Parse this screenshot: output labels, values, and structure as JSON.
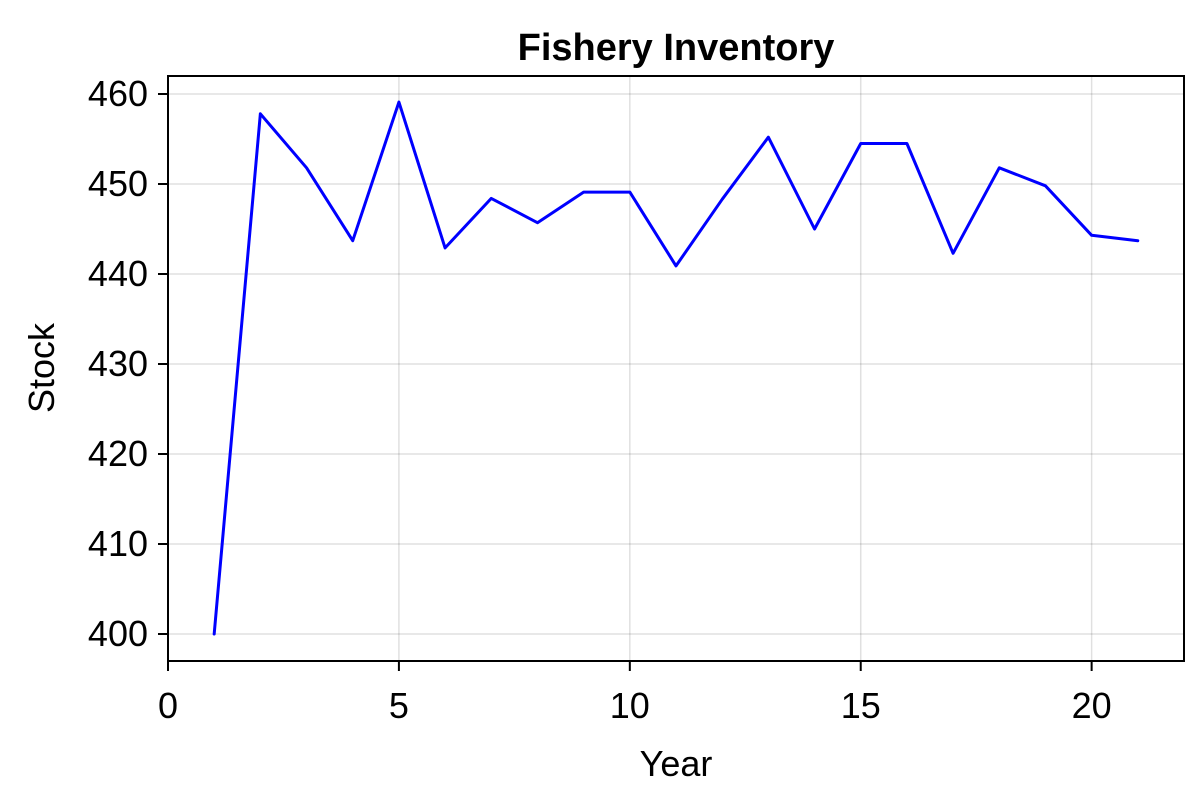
{
  "chart_data": {
    "type": "line",
    "title": "Fishery Inventory",
    "xlabel": "Year",
    "ylabel": "Stock",
    "xlim": [
      0,
      22
    ],
    "ylim": [
      397,
      462
    ],
    "xticks": [
      0,
      5,
      10,
      15,
      20
    ],
    "yticks": [
      400,
      410,
      420,
      430,
      440,
      450,
      460
    ],
    "grid": true,
    "legend": "none",
    "series": [
      {
        "color": "#0000ff",
        "x": [
          1,
          2,
          3,
          4,
          5,
          6,
          7,
          8,
          9,
          10,
          11,
          12,
          13,
          14,
          15,
          16,
          17,
          18,
          19,
          20,
          21
        ],
        "y": [
          400,
          457.8,
          451.8,
          443.7,
          459.1,
          442.9,
          448.4,
          445.7,
          449.1,
          449.1,
          440.9,
          448.3,
          455.2,
          445.0,
          454.5,
          454.5,
          442.3,
          451.8,
          449.8,
          444.3,
          443.7
        ]
      }
    ]
  }
}
